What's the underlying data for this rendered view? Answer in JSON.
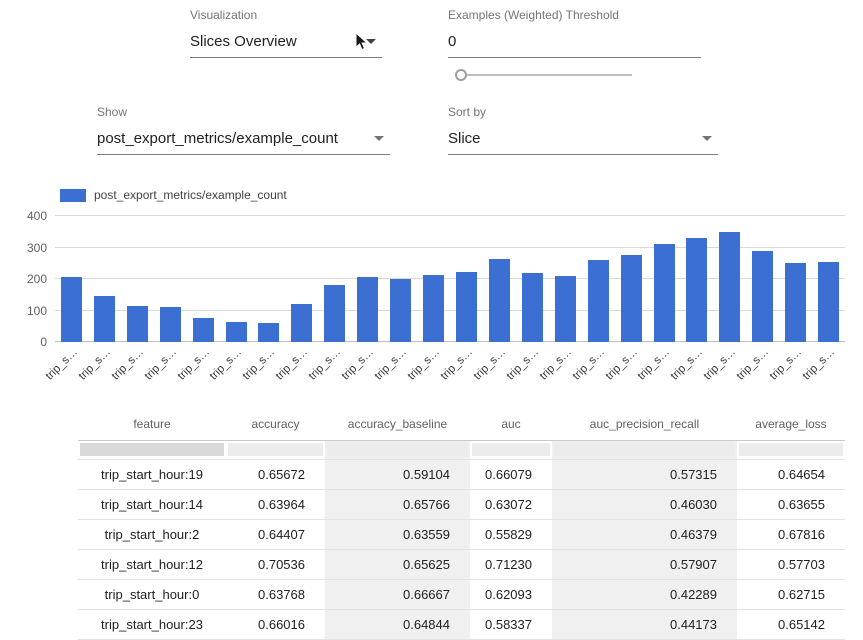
{
  "controls": {
    "visualization": {
      "label": "Visualization",
      "value": "Slices Overview"
    },
    "threshold": {
      "label": "Examples (Weighted) Threshold",
      "value": "0"
    },
    "show": {
      "label": "Show",
      "value": "post_export_metrics/example_count"
    },
    "sort_by": {
      "label": "Sort by",
      "value": "Slice"
    }
  },
  "chart_data": {
    "type": "bar",
    "legend": "post_export_metrics/example_count",
    "categories": [
      "trip_s…",
      "trip_s…",
      "trip_s…",
      "trip_s…",
      "trip_s…",
      "trip_s…",
      "trip_s…",
      "trip_s…",
      "trip_s…",
      "trip_s…",
      "trip_s…",
      "trip_s…",
      "trip_s…",
      "trip_s…",
      "trip_s…",
      "trip_s…",
      "trip_s…",
      "trip_s…",
      "trip_s…",
      "trip_s…",
      "trip_s…",
      "trip_s…",
      "trip_s…",
      "trip_s…"
    ],
    "values": [
      205,
      145,
      113,
      110,
      75,
      65,
      60,
      122,
      180,
      205,
      200,
      213,
      222,
      265,
      220,
      210,
      260,
      277,
      312,
      330,
      350,
      290,
      252,
      255
    ],
    "xlabel": "",
    "ylabel": "",
    "ylim": [
      0,
      400
    ],
    "yticks": [
      0,
      100,
      200,
      300,
      400
    ],
    "grid": true,
    "legend_position": "top-left",
    "bar_color": "#3b6fd2"
  },
  "table": {
    "columns": [
      "feature",
      "accuracy",
      "accuracy_baseline",
      "auc",
      "auc_precision_recall",
      "average_loss"
    ],
    "shaded_columns": [
      2,
      4
    ],
    "rows": [
      [
        "trip_start_hour:19",
        "0.65672",
        "0.59104",
        "0.66079",
        "0.57315",
        "0.64654"
      ],
      [
        "trip_start_hour:14",
        "0.63964",
        "0.65766",
        "0.63072",
        "0.46030",
        "0.63655"
      ],
      [
        "trip_start_hour:2",
        "0.64407",
        "0.63559",
        "0.55829",
        "0.46379",
        "0.67816"
      ],
      [
        "trip_start_hour:12",
        "0.70536",
        "0.65625",
        "0.71230",
        "0.57907",
        "0.57703"
      ],
      [
        "trip_start_hour:0",
        "0.63768",
        "0.66667",
        "0.62093",
        "0.42289",
        "0.62715"
      ],
      [
        "trip_start_hour:23",
        "0.66016",
        "0.64844",
        "0.58337",
        "0.44173",
        "0.65142"
      ]
    ]
  }
}
